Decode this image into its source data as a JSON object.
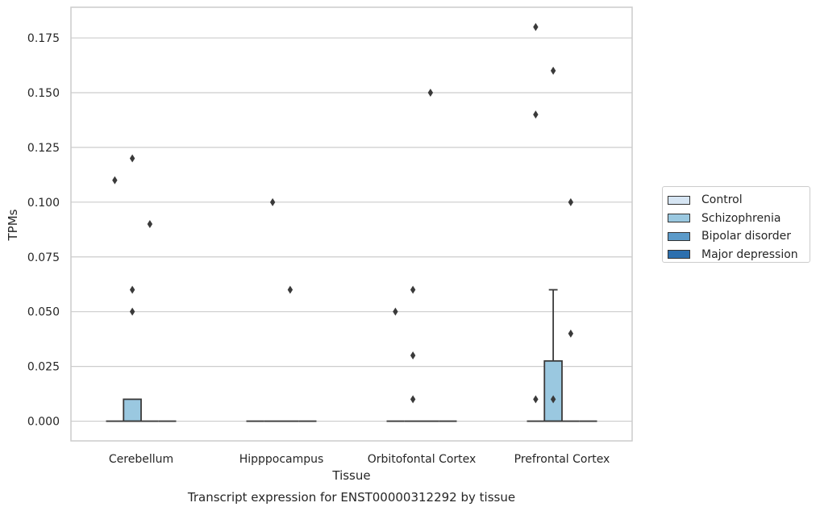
{
  "chart_data": {
    "type": "box",
    "title": "Transcript expression for ENST00000312292 by tissue",
    "xlabel": "Tissue",
    "ylabel": "TPMs",
    "ylim": [
      -0.009,
      0.189
    ],
    "yticks": [
      0.0,
      0.025,
      0.05,
      0.075,
      0.1,
      0.125,
      0.15,
      0.175
    ],
    "ytick_labels": [
      "0.000",
      "0.025",
      "0.050",
      "0.075",
      "0.100",
      "0.125",
      "0.150",
      "0.175"
    ],
    "grid": "horizontal",
    "legend_position": "right",
    "categories": [
      "Cerebellum",
      "Hipppocampus",
      "Orbitofontal Cortex",
      "Prefrontal Cortex"
    ],
    "series": [
      {
        "name": "Control",
        "color": "#d6e5f3",
        "boxes": [
          {
            "q1": 0,
            "median": 0,
            "q3": 0,
            "whisker_low": 0,
            "whisker_high": 0,
            "outliers": [
              0.11
            ]
          },
          {
            "q1": 0,
            "median": 0,
            "q3": 0,
            "whisker_low": 0,
            "whisker_high": 0,
            "outliers": []
          },
          {
            "q1": 0,
            "median": 0,
            "q3": 0,
            "whisker_low": 0,
            "whisker_high": 0,
            "outliers": [
              0.05
            ]
          },
          {
            "q1": 0,
            "median": 0,
            "q3": 0,
            "whisker_low": 0,
            "whisker_high": 0,
            "outliers": [
              0.18,
              0.14,
              0.01
            ]
          }
        ]
      },
      {
        "name": "Schizophrenia",
        "color": "#9ac8e0",
        "boxes": [
          {
            "q1": 0,
            "median": 0,
            "q3": 0.01,
            "whisker_low": 0,
            "whisker_high": 0.01,
            "outliers": [
              0.12,
              0.06,
              0.05
            ]
          },
          {
            "q1": 0,
            "median": 0,
            "q3": 0,
            "whisker_low": 0,
            "whisker_high": 0,
            "outliers": [
              0.1
            ]
          },
          {
            "q1": 0,
            "median": 0,
            "q3": 0,
            "whisker_low": 0,
            "whisker_high": 0,
            "outliers": [
              0.06,
              0.03,
              0.01
            ]
          },
          {
            "q1": 0,
            "median": 0,
            "q3": 0.0275,
            "whisker_low": 0,
            "whisker_high": 0.06,
            "outliers": [
              0.16,
              0.01
            ]
          }
        ]
      },
      {
        "name": "Bipolar disorder",
        "color": "#5b9ac9",
        "boxes": [
          {
            "q1": 0,
            "median": 0,
            "q3": 0,
            "whisker_low": 0,
            "whisker_high": 0,
            "outliers": [
              0.09
            ]
          },
          {
            "q1": 0,
            "median": 0,
            "q3": 0,
            "whisker_low": 0,
            "whisker_high": 0,
            "outliers": [
              0.06
            ]
          },
          {
            "q1": 0,
            "median": 0,
            "q3": 0,
            "whisker_low": 0,
            "whisker_high": 0,
            "outliers": [
              0.15
            ]
          },
          {
            "q1": 0,
            "median": 0,
            "q3": 0,
            "whisker_low": 0,
            "whisker_high": 0,
            "outliers": [
              0.1,
              0.04
            ]
          }
        ]
      },
      {
        "name": "Major depression",
        "color": "#2c6fae",
        "boxes": [
          {
            "q1": 0,
            "median": 0,
            "q3": 0,
            "whisker_low": 0,
            "whisker_high": 0,
            "outliers": []
          },
          {
            "q1": 0,
            "median": 0,
            "q3": 0,
            "whisker_low": 0,
            "whisker_high": 0,
            "outliers": []
          },
          {
            "q1": 0,
            "median": 0,
            "q3": 0,
            "whisker_low": 0,
            "whisker_high": 0,
            "outliers": []
          },
          {
            "q1": 0,
            "median": 0,
            "q3": 0,
            "whisker_low": 0,
            "whisker_high": 0,
            "outliers": []
          }
        ]
      }
    ]
  }
}
